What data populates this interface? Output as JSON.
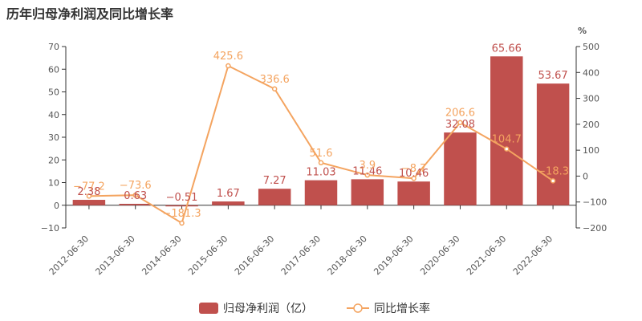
{
  "chart_data": {
    "type": "bar",
    "title": "历年归母净利润及同比增长率",
    "categories": [
      "2012-06-30",
      "2013-06-30",
      "2014-06-30",
      "2015-06-30",
      "2016-06-30",
      "2017-06-30",
      "2018-06-30",
      "2019-06-30",
      "2020-06-30",
      "2021-06-30",
      "2022-06-30"
    ],
    "series": [
      {
        "name": "归母净利润（亿）",
        "type": "bar",
        "axis": "left",
        "color": "#c0504d",
        "values": [
          2.38,
          0.63,
          -0.51,
          1.67,
          7.27,
          11.03,
          11.46,
          10.46,
          32.08,
          65.66,
          53.67
        ],
        "labels": [
          "2.38",
          "0.63",
          "−0.51",
          "1.67",
          "7.27",
          "11.03",
          "11.46",
          "10.46",
          "32.08",
          "65.66",
          "53.67"
        ]
      },
      {
        "name": "同比增长率",
        "type": "line",
        "axis": "right",
        "color": "#f4a460",
        "values": [
          -77.2,
          -73.6,
          -181.3,
          425.6,
          336.6,
          51.6,
          3.9,
          -8.7,
          206.6,
          104.7,
          -18.3
        ],
        "labels": [
          "−77.2",
          "−73.6",
          "−181.3",
          "425.6",
          "336.6",
          "51.6",
          "3.9",
          "−8.7",
          "206.6",
          "104.7",
          "−18.3"
        ]
      }
    ],
    "y_left": {
      "min": -10,
      "max": 70,
      "ticks": [
        "70",
        "60",
        "50",
        "40",
        "30",
        "20",
        "10",
        "0",
        "−10"
      ],
      "tick_values": [
        70,
        60,
        50,
        40,
        30,
        20,
        10,
        0,
        -10
      ]
    },
    "y_right": {
      "min": -200,
      "max": 500,
      "label": "%",
      "ticks": [
        "500",
        "400",
        "300",
        "200",
        "100",
        "0",
        "−100",
        "−200"
      ],
      "tick_values": [
        500,
        400,
        300,
        200,
        100,
        0,
        -100,
        -200
      ]
    },
    "legend_position": "bottom"
  }
}
